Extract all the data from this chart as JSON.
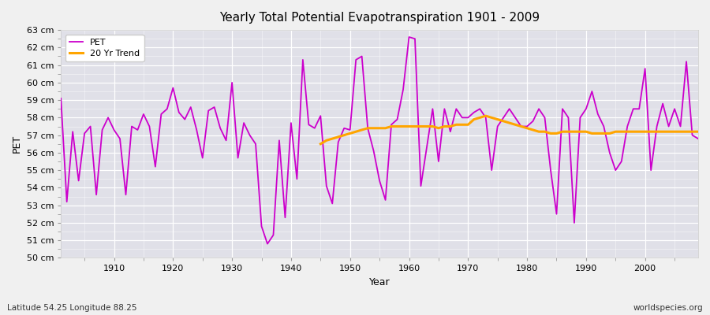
{
  "title": "Yearly Total Potential Evapotranspiration 1901 - 2009",
  "xlabel": "Year",
  "ylabel": "PET",
  "subtitle": "Latitude 54.25 Longitude 88.25",
  "watermark": "worldspecies.org",
  "ylim": [
    50,
    63
  ],
  "pet_color": "#cc00cc",
  "trend_color": "#ffa500",
  "fig_bg_color": "#f0f0f0",
  "plot_bg_color": "#e0e0e8",
  "years": [
    1901,
    1902,
    1903,
    1904,
    1905,
    1906,
    1907,
    1908,
    1909,
    1910,
    1911,
    1912,
    1913,
    1914,
    1915,
    1916,
    1917,
    1918,
    1919,
    1920,
    1921,
    1922,
    1923,
    1924,
    1925,
    1926,
    1927,
    1928,
    1929,
    1930,
    1931,
    1932,
    1933,
    1934,
    1935,
    1936,
    1937,
    1938,
    1939,
    1940,
    1941,
    1942,
    1943,
    1944,
    1945,
    1946,
    1947,
    1948,
    1949,
    1950,
    1951,
    1952,
    1953,
    1954,
    1955,
    1956,
    1957,
    1958,
    1959,
    1960,
    1961,
    1962,
    1963,
    1964,
    1965,
    1966,
    1967,
    1968,
    1969,
    1970,
    1971,
    1972,
    1973,
    1974,
    1975,
    1976,
    1977,
    1978,
    1979,
    1980,
    1981,
    1982,
    1983,
    1984,
    1985,
    1986,
    1987,
    1988,
    1989,
    1990,
    1991,
    1992,
    1993,
    1994,
    1995,
    1996,
    1997,
    1998,
    1999,
    2000,
    2001,
    2002,
    2003,
    2004,
    2005,
    2006,
    2007,
    2008,
    2009
  ],
  "pet_values": [
    59.1,
    53.2,
    57.2,
    54.4,
    57.1,
    57.5,
    53.6,
    57.3,
    58.0,
    57.3,
    56.8,
    53.6,
    57.5,
    57.3,
    58.2,
    57.5,
    55.2,
    58.2,
    58.5,
    59.7,
    58.3,
    57.9,
    58.6,
    57.3,
    55.7,
    58.4,
    58.6,
    57.4,
    56.7,
    60.0,
    55.7,
    57.7,
    57.0,
    56.5,
    51.8,
    50.8,
    51.3,
    56.7,
    52.3,
    57.7,
    54.5,
    61.3,
    57.6,
    57.4,
    58.1,
    54.1,
    53.1,
    56.6,
    57.4,
    57.3,
    61.3,
    61.5,
    57.4,
    56.1,
    54.4,
    53.3,
    57.6,
    57.9,
    59.6,
    62.6,
    62.5,
    54.1,
    56.3,
    58.5,
    55.5,
    58.5,
    57.2,
    58.5,
    58.0,
    58.0,
    58.3,
    58.5,
    58.0,
    55.0,
    57.5,
    58.0,
    58.5,
    58.0,
    57.5,
    57.5,
    57.8,
    58.5,
    58.0,
    55.0,
    52.5,
    58.5,
    58.0,
    52.0,
    58.0,
    58.5,
    59.5,
    58.2,
    57.5,
    56.0,
    55.0,
    55.5,
    57.5,
    58.5,
    58.5,
    60.8,
    55.0,
    57.5,
    58.8,
    57.5,
    58.5,
    57.5,
    61.2,
    57.0,
    56.8
  ],
  "trend_years": [
    1945,
    1946,
    1947,
    1948,
    1949,
    1950,
    1951,
    1952,
    1953,
    1954,
    1955,
    1956,
    1957,
    1958,
    1959,
    1960,
    1961,
    1962,
    1963,
    1964,
    1965,
    1966,
    1967,
    1968,
    1969,
    1970,
    1971,
    1972,
    1973,
    1974,
    1975,
    1976,
    1977,
    1978,
    1979,
    1980,
    1981,
    1982,
    1983,
    1984,
    1985,
    1986,
    1987,
    1988,
    1989,
    1990,
    1991,
    1992,
    1993,
    1994,
    1995,
    1996,
    1997,
    1998,
    1999,
    2000,
    2001,
    2002,
    2003,
    2004,
    2005,
    2006,
    2007,
    2008,
    2009
  ],
  "trend_values": [
    56.5,
    56.7,
    56.8,
    56.9,
    57.0,
    57.1,
    57.2,
    57.3,
    57.4,
    57.4,
    57.4,
    57.4,
    57.5,
    57.5,
    57.5,
    57.5,
    57.5,
    57.5,
    57.5,
    57.5,
    57.4,
    57.5,
    57.5,
    57.6,
    57.6,
    57.6,
    57.9,
    58.0,
    58.1,
    58.0,
    57.9,
    57.8,
    57.7,
    57.6,
    57.5,
    57.4,
    57.3,
    57.2,
    57.2,
    57.1,
    57.1,
    57.2,
    57.2,
    57.2,
    57.2,
    57.2,
    57.1,
    57.1,
    57.1,
    57.1,
    57.2,
    57.2,
    57.2,
    57.2,
    57.2,
    57.2,
    57.2,
    57.2,
    57.2,
    57.2,
    57.2,
    57.2,
    57.2,
    57.2,
    57.2
  ]
}
